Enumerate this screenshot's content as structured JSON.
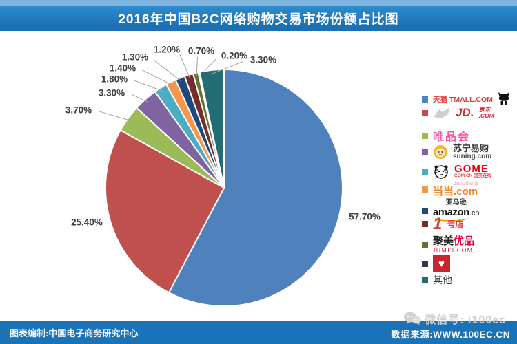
{
  "header": {
    "title": "2016年中国B2C网络购物交易市场份额占比图"
  },
  "chart_data": {
    "type": "pie",
    "title": "2016年中国B2C网络购物交易市场份额占比图",
    "unit": "percent",
    "direction": "clockwise",
    "start_angle_deg": 0,
    "legend_position": "right",
    "slices": [
      {
        "name": "天猫 TMALL.COM",
        "value": 57.7,
        "label": "57.70%",
        "color": "#4F81BD"
      },
      {
        "name": "京东 JD.COM",
        "value": 25.4,
        "label": "25.40%",
        "color": "#C0504D"
      },
      {
        "name": "唯品会",
        "value": 3.7,
        "label": "3.70%",
        "color": "#9BBB59"
      },
      {
        "name": "苏宁易购 suning.com",
        "value": 3.3,
        "label": "3.30%",
        "color": "#8064A2"
      },
      {
        "name": "国美 GOME COM.CN",
        "value": 1.8,
        "label": "1.80%",
        "color": "#4BACC6"
      },
      {
        "name": "当当 dangdang.com",
        "value": 1.4,
        "label": "1.40%",
        "color": "#F79646"
      },
      {
        "name": "亚马逊 amazon.cn",
        "value": 1.3,
        "label": "1.30%",
        "color": "#1F497D"
      },
      {
        "name": "1号店",
        "value": 1.2,
        "label": "1.20%",
        "color": "#772C2A"
      },
      {
        "name": "聚美优品 JUMEI.COM",
        "value": 0.7,
        "label": "0.70%",
        "color": "#5F7530"
      },
      {
        "name": "红心标志品牌",
        "value": 0.2,
        "label": "0.20%",
        "color": "#3F3151"
      },
      {
        "name": "其他",
        "value": 3.3,
        "label": "3.30%",
        "color": "#246C74"
      }
    ]
  },
  "legend": {
    "items": [
      {
        "text": "天猫 TMALL.COM"
      },
      {
        "main": "JD.",
        "top": "京东",
        "bottom": ".COM"
      },
      {
        "text": "唯品会"
      },
      {
        "text": "苏宁易购",
        "sub": "suning.com"
      },
      {
        "text": "GOME",
        "sub": "COM.CN 国美在线"
      },
      {
        "top": "dangdang",
        "text": "当当.com"
      },
      {
        "top": "亚马逊",
        "text": "amazon",
        "suffix": ".cn"
      },
      {
        "num": "1",
        "text": "号店"
      },
      {
        "part1": "聚美",
        "part2": "优品",
        "sub": "JUMEI.COM"
      },
      {
        "icon": "♥",
        "text": ""
      },
      {
        "text": "其他"
      }
    ]
  },
  "footer": {
    "credit": "图表编制:中国电子商务研究中心",
    "wechat": "微信号: i100ec",
    "source": "数据来源:WWW.100EC.CN"
  },
  "theme": {
    "bar_blue": "#1A73B6",
    "bar_blue_light": "#7FB5DF"
  }
}
